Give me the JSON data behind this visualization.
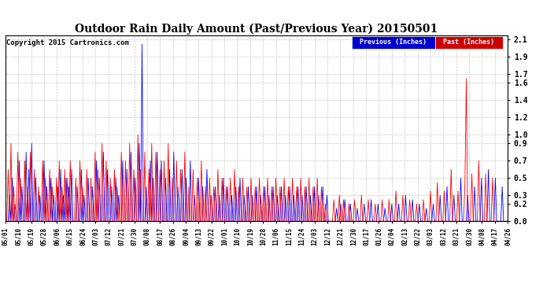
{
  "title": "Outdoor Rain Daily Amount (Past/Previous Year) 20150501",
  "copyright": "Copyright 2015 Cartronics.com",
  "legend_previous": "Previous (Inches)",
  "legend_past": "Past (Inches)",
  "yticks": [
    0.0,
    0.2,
    0.3,
    0.5,
    0.7,
    0.9,
    1.0,
    1.2,
    1.4,
    1.6,
    1.7,
    1.9,
    2.1
  ],
  "ylim": [
    0.0,
    2.15
  ],
  "background_color": "#FFFFFF",
  "grid_color": "#BBBBBB",
  "title_fontsize": 10,
  "copyright_fontsize": 6.5,
  "xtick_labels": [
    "05/01",
    "05/10",
    "05/19",
    "05/28",
    "06/06",
    "06/15",
    "06/24",
    "07/03",
    "07/12",
    "07/21",
    "07/30",
    "08/08",
    "08/17",
    "08/26",
    "09/04",
    "09/13",
    "09/22",
    "10/01",
    "10/10",
    "10/19",
    "10/28",
    "11/06",
    "11/15",
    "11/24",
    "12/03",
    "12/12",
    "12/21",
    "12/30",
    "01/17",
    "01/26",
    "02/04",
    "02/13",
    "02/22",
    "03/03",
    "03/12",
    "03/21",
    "03/30",
    "04/08",
    "04/17",
    "04/26"
  ],
  "n_points": 365,
  "prev_color": "#0000FF",
  "past_color": "#FF0000"
}
